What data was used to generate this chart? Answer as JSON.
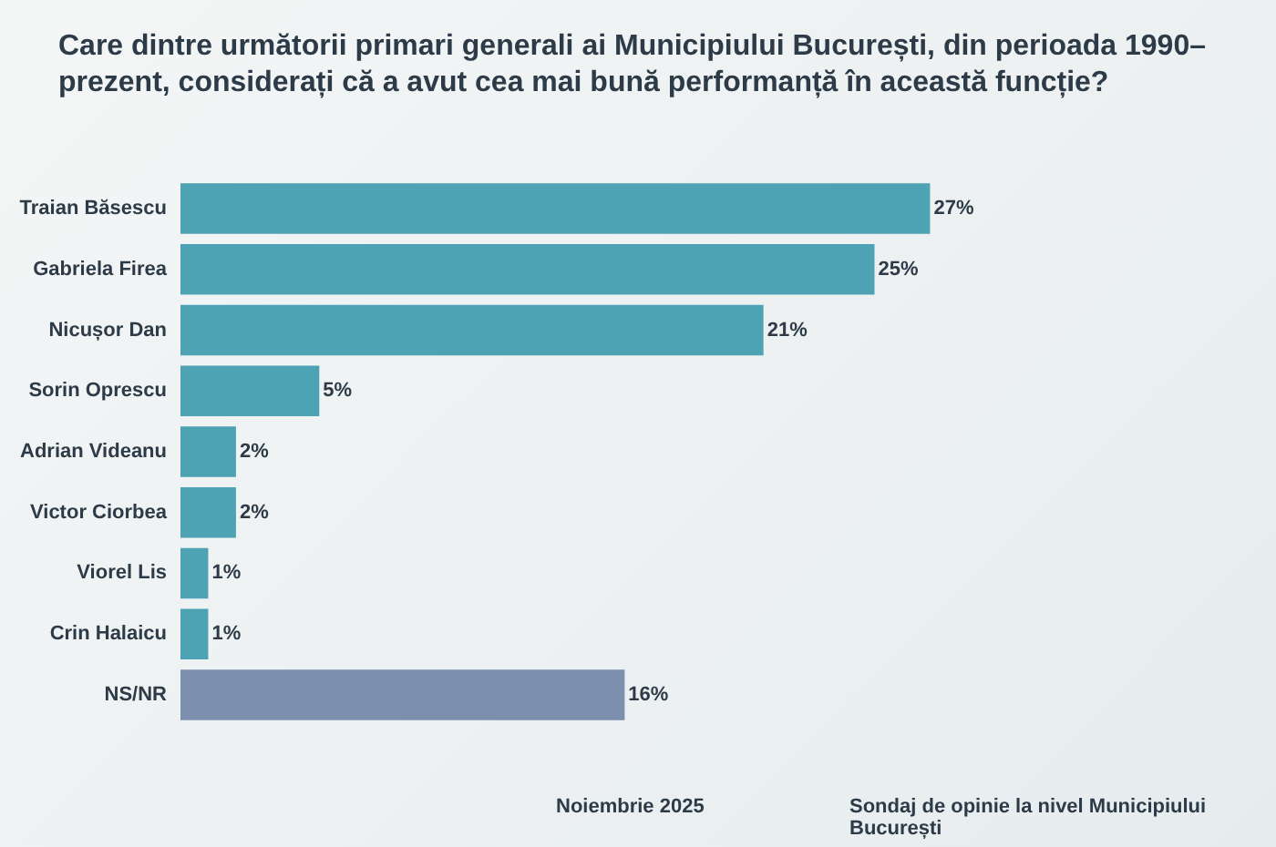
{
  "chart_data": {
    "type": "bar",
    "orientation": "horizontal",
    "title": "Care dintre următorii primari generali ai Municipiului București, din perioada 1990–prezent, considerați că a avut cea mai bună performanță în această funcție?",
    "categories": [
      "Traian Băsescu",
      "Gabriela Firea",
      "Nicușor Dan",
      "Sorin Oprescu",
      "Adrian Videanu",
      "Victor Ciorbea",
      "Viorel Lis",
      "Crin Halaicu",
      "NS/NR"
    ],
    "values": [
      27,
      25,
      21,
      5,
      2,
      2,
      1,
      1,
      16
    ],
    "colors": [
      "#4da2b3",
      "#4da2b3",
      "#4da2b3",
      "#4da2b3",
      "#4da2b3",
      "#4da2b3",
      "#4da2b3",
      "#4da2b3",
      "#7c8fae"
    ],
    "value_labels": [
      "27%",
      "25%",
      "21%",
      "5%",
      "2%",
      "2%",
      "1%",
      "1%",
      "16%"
    ],
    "annotations": [
      "Noiembrie 2025",
      "Sondaj de opinie la nivel Municipiului București"
    ]
  }
}
